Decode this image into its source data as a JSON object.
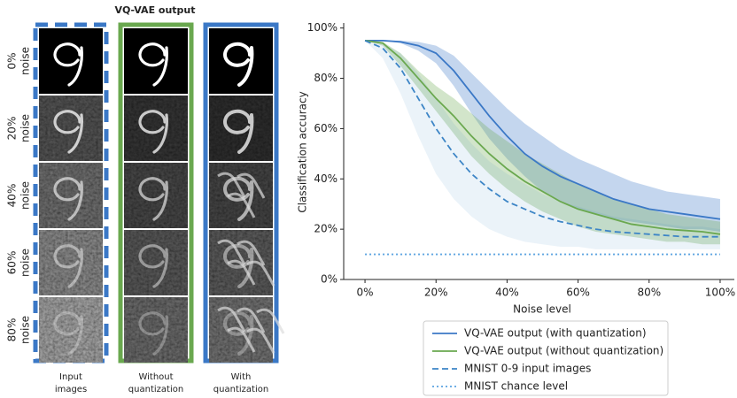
{
  "panel": {
    "title": "VQ-VAE output",
    "row_labels": [
      [
        "0%",
        "noise"
      ],
      [
        "20%",
        "noise"
      ],
      [
        "40%",
        "noise"
      ],
      [
        "60%",
        "noise"
      ],
      [
        "80%",
        "noise"
      ]
    ],
    "column_labels": [
      [
        "Input",
        "images"
      ],
      [
        "Without",
        "quantization"
      ],
      [
        "With",
        "quantization"
      ]
    ]
  },
  "chart_data": {
    "type": "line",
    "xlabel": "Noise level",
    "ylabel": "Classification accuracy",
    "x": [
      0,
      5,
      10,
      15,
      20,
      25,
      30,
      35,
      40,
      45,
      50,
      55,
      60,
      65,
      70,
      75,
      80,
      85,
      90,
      95,
      100
    ],
    "xlim": [
      -6,
      104
    ],
    "ylim": [
      0,
      102
    ],
    "xticks": [
      {
        "value": 0,
        "label": "0%"
      },
      {
        "value": 20,
        "label": "20%"
      },
      {
        "value": 40,
        "label": "40%"
      },
      {
        "value": 60,
        "label": "60%"
      },
      {
        "value": 80,
        "label": "80%"
      },
      {
        "value": 100,
        "label": "100%"
      }
    ],
    "yticks": [
      {
        "value": 0,
        "label": "0%"
      },
      {
        "value": 20,
        "label": "20%"
      },
      {
        "value": 40,
        "label": "40%"
      },
      {
        "value": 60,
        "label": "60%"
      },
      {
        "value": 80,
        "label": "80%"
      },
      {
        "value": 100,
        "label": "100%"
      }
    ],
    "series": [
      {
        "name": "VQ-VAE output (with quantization)",
        "color": "#3b78c6",
        "style": "solid",
        "values": [
          95,
          95,
          94.5,
          93,
          90,
          83,
          74,
          65,
          57,
          50,
          45,
          41,
          38,
          35,
          32,
          30,
          28,
          27,
          26,
          25,
          24
        ],
        "upper": [
          95,
          95,
          95,
          94.5,
          93,
          89,
          82,
          75,
          68,
          62,
          57,
          52,
          48,
          45,
          42,
          39,
          37,
          35,
          34,
          33,
          32
        ],
        "lower": [
          95,
          95,
          94,
          91,
          86,
          77,
          66,
          56,
          48,
          41,
          35,
          31,
          28,
          26,
          24,
          23,
          22,
          21,
          20,
          20,
          19
        ]
      },
      {
        "name": "VQ-VAE output (without quantization)",
        "color": "#6aa84f",
        "style": "solid",
        "values": [
          95,
          94,
          88,
          80,
          72,
          65,
          57,
          50,
          44,
          39,
          35,
          31,
          28,
          26,
          24,
          22,
          21,
          20,
          19.5,
          19,
          18
        ],
        "upper": [
          95,
          94.5,
          90,
          83,
          77,
          72,
          66,
          60,
          55,
          50,
          46,
          42,
          38,
          35,
          32,
          30,
          28,
          26,
          25,
          24,
          23
        ],
        "lower": [
          95,
          93,
          85,
          76,
          67,
          58,
          49,
          42,
          36,
          31,
          27,
          24,
          21,
          19,
          18,
          17,
          16,
          15,
          15,
          14,
          14
        ]
      },
      {
        "name": "MNIST 0-9 input images",
        "color": "#3d85c6",
        "style": "dashed",
        "values": [
          95,
          92,
          84,
          72,
          60,
          50,
          42,
          36,
          31,
          28,
          25,
          23,
          21.5,
          20,
          19,
          18.5,
          18,
          17.5,
          17,
          17,
          17
        ],
        "upper": [
          95,
          94,
          90,
          82,
          72,
          62,
          54,
          47,
          42,
          38,
          34,
          31,
          29,
          27,
          25,
          24,
          23,
          22,
          21,
          21,
          20
        ],
        "lower": [
          95,
          88,
          74,
          57,
          42,
          32,
          25,
          20,
          17,
          15,
          14,
          13,
          13,
          12,
          12,
          12,
          12,
          12,
          12,
          12,
          12
        ]
      },
      {
        "name": "MNIST chance level",
        "color": "#5ba3e0",
        "style": "dotted",
        "values": [
          10,
          10,
          10,
          10,
          10,
          10,
          10,
          10,
          10,
          10,
          10,
          10,
          10,
          10,
          10,
          10,
          10,
          10,
          10,
          10,
          10
        ]
      }
    ]
  }
}
